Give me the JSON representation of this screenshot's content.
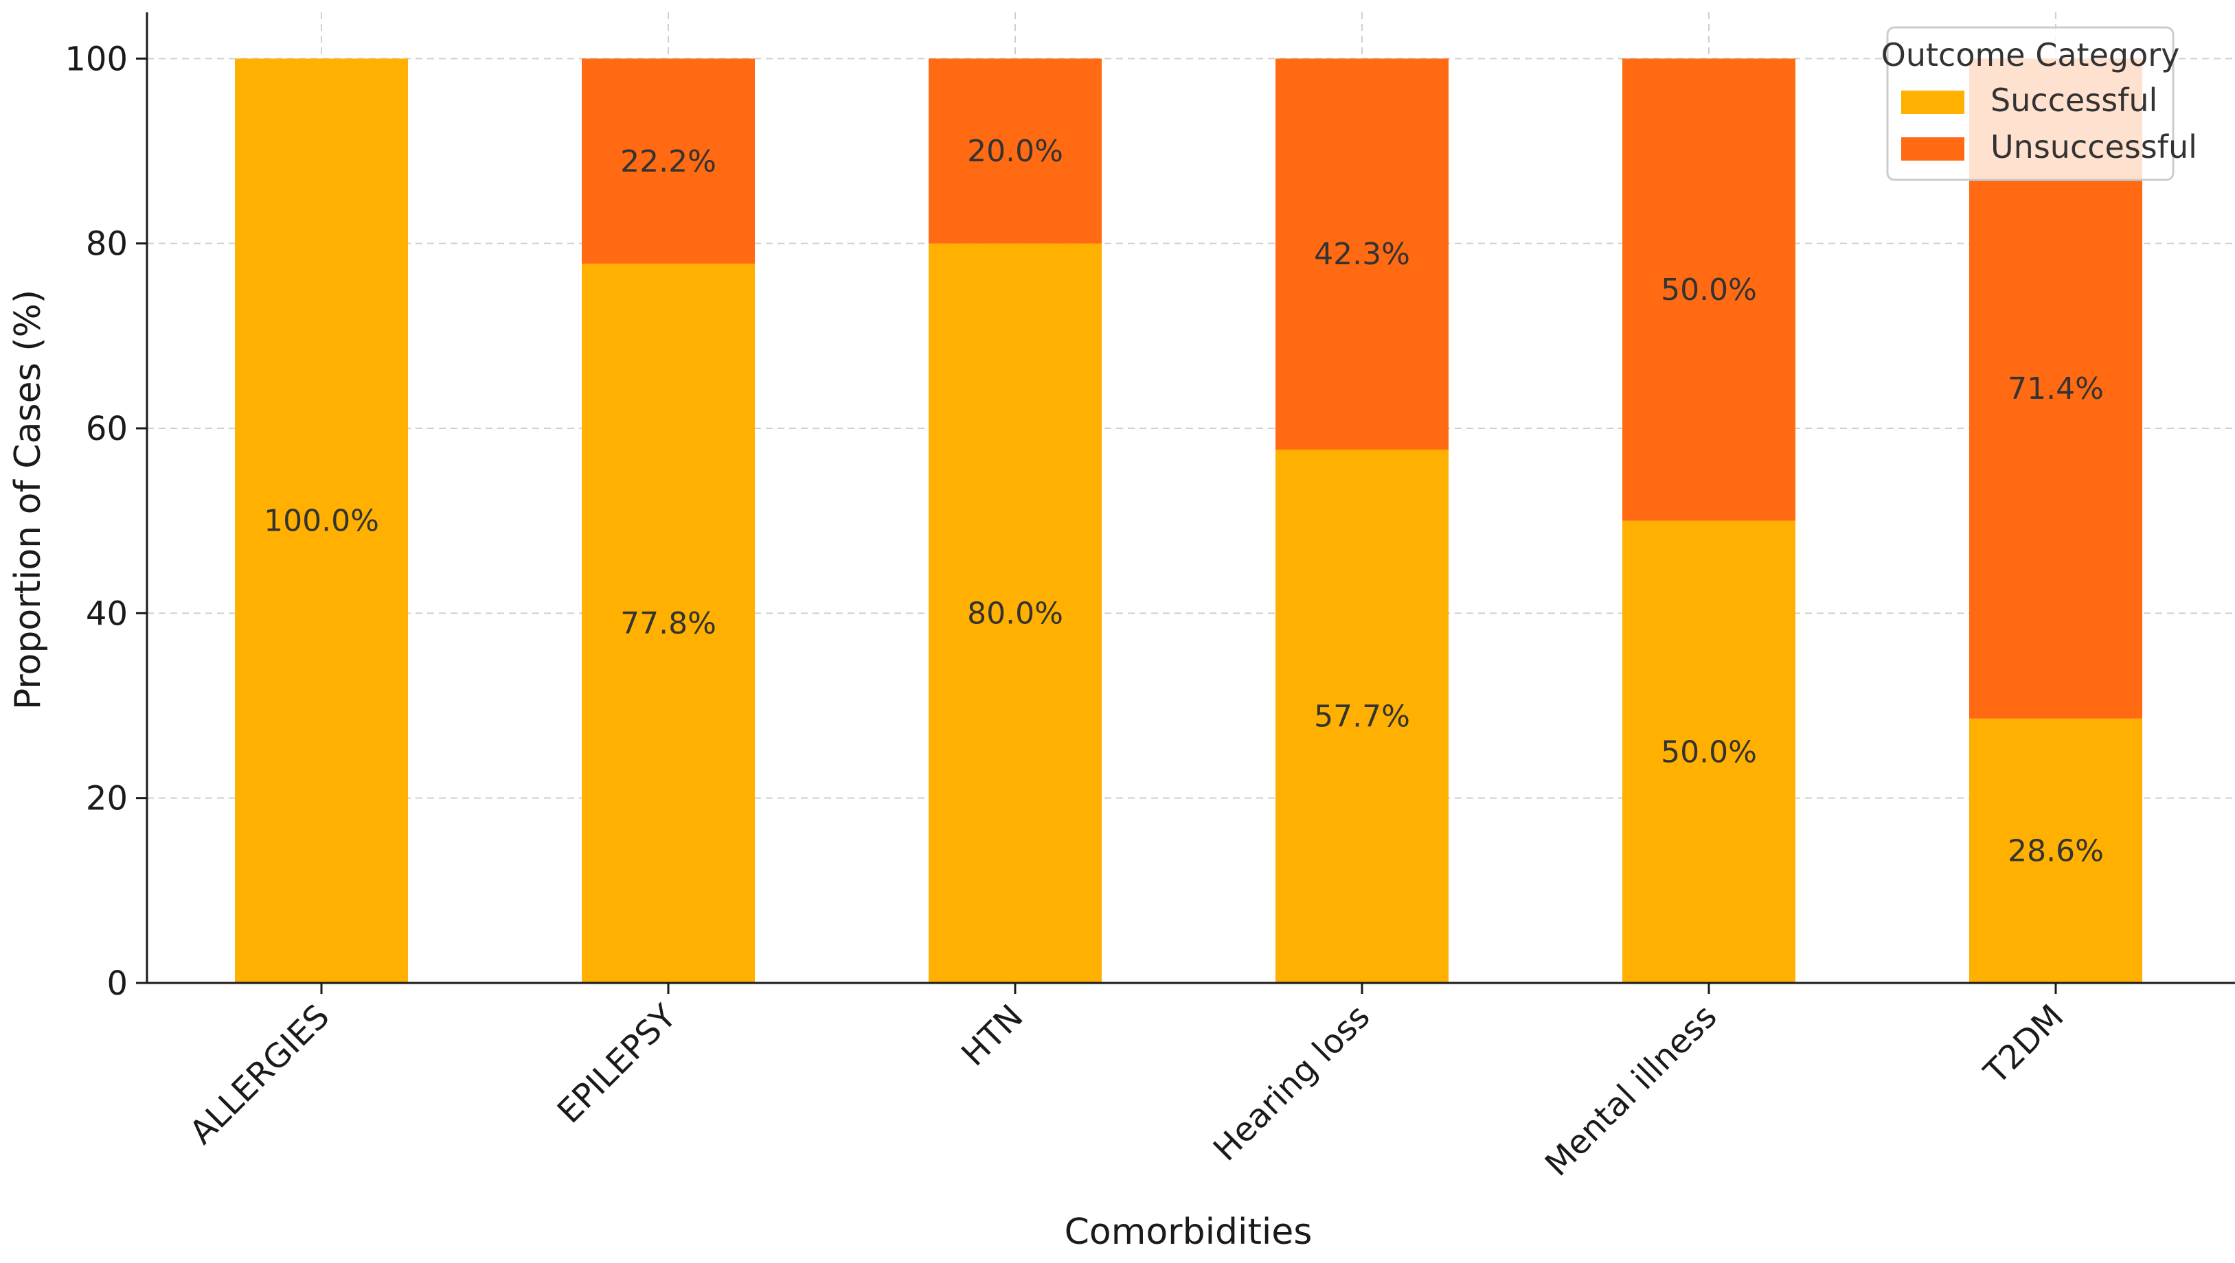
{
  "chart_data": {
    "type": "bar",
    "stacked": true,
    "title": "",
    "xlabel": "Comorbidities",
    "ylabel": "Proportion of Cases (%)",
    "ylim": [
      0,
      105
    ],
    "yticks": [
      0,
      20,
      40,
      60,
      80,
      100
    ],
    "grid": true,
    "legend_title": "Outcome Category",
    "legend_placement": "top-right",
    "categories": [
      "ALLERGIES",
      "EPILEPSY",
      "HTN",
      "Hearing loss",
      "Mental illness",
      "T2DM"
    ],
    "series": [
      {
        "name": "Successful",
        "color": "#FFB000",
        "values": [
          100.0,
          77.8,
          80.0,
          57.7,
          50.0,
          28.6
        ],
        "labels": [
          "100.0%",
          "77.8%",
          "80.0%",
          "57.7%",
          "50.0%",
          "28.6%"
        ]
      },
      {
        "name": "Unsuccessful",
        "color": "#FF6A13",
        "values": [
          0.0,
          22.2,
          20.0,
          42.3,
          50.0,
          71.4
        ],
        "labels": [
          "",
          "22.2%",
          "20.0%",
          "42.3%",
          "50.0%",
          "71.4%"
        ]
      }
    ]
  }
}
